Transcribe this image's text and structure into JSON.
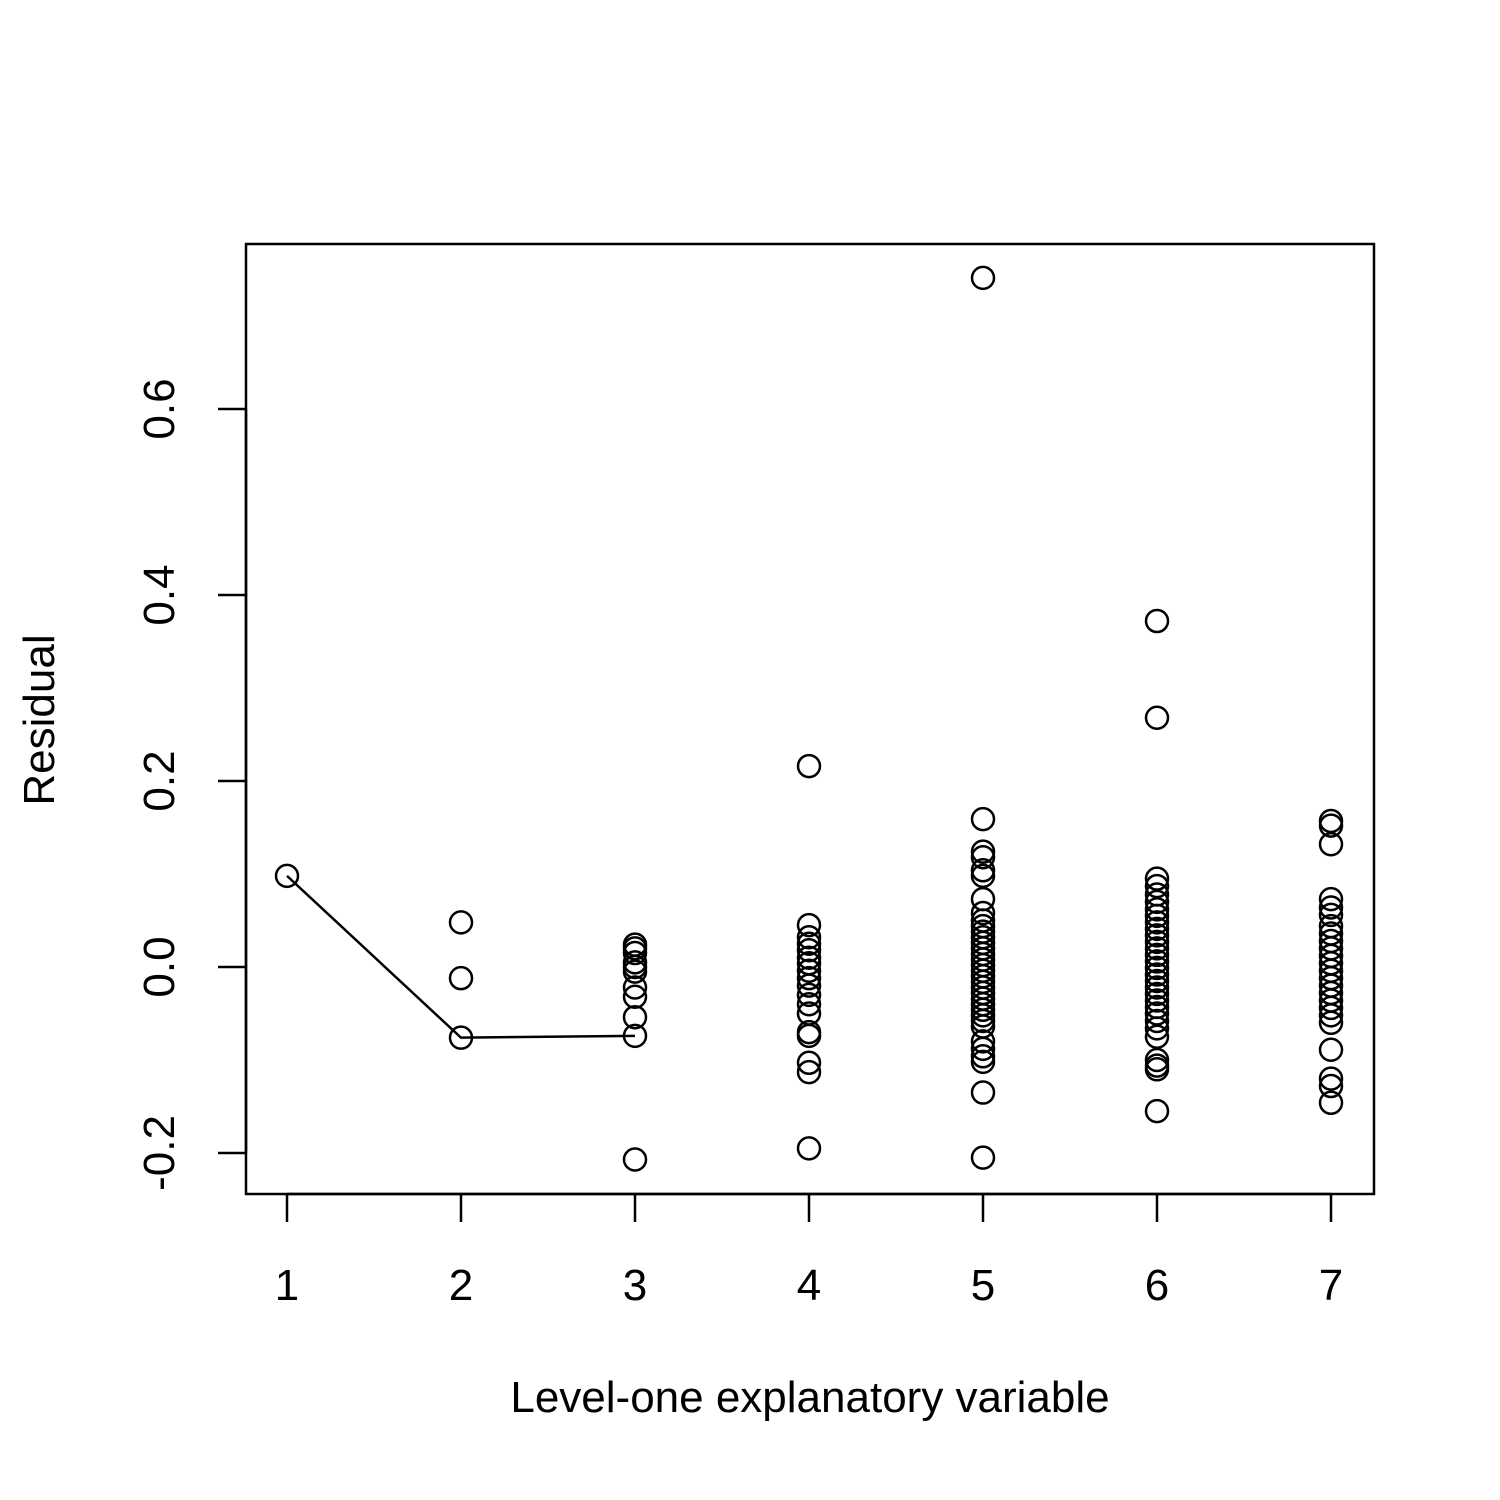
{
  "chart_data": {
    "type": "scatter",
    "xlabel": "Level-one explanatory variable",
    "ylabel": "Residual",
    "xlim": [
      1,
      7
    ],
    "ylim": [
      -0.21,
      0.76
    ],
    "xticks": [
      "1",
      "2",
      "3",
      "4",
      "5",
      "6",
      "7"
    ],
    "yticks": [
      "-0.2",
      "0.0",
      "0.2",
      "0.4",
      "0.6"
    ],
    "ytick_values": [
      -0.2,
      0.0,
      0.2,
      0.4,
      0.6
    ],
    "grid": false,
    "legend": "none",
    "points": [
      {
        "x": 1,
        "y": 0.098
      },
      {
        "x": 2,
        "y": 0.048
      },
      {
        "x": 2,
        "y": -0.012
      },
      {
        "x": 2,
        "y": -0.076
      },
      {
        "x": 3,
        "y": 0.024
      },
      {
        "x": 3,
        "y": 0.02
      },
      {
        "x": 3,
        "y": 0.015
      },
      {
        "x": 3,
        "y": 0.005
      },
      {
        "x": 3,
        "y": 0.0
      },
      {
        "x": 3,
        "y": -0.005
      },
      {
        "x": 3,
        "y": -0.022
      },
      {
        "x": 3,
        "y": -0.032
      },
      {
        "x": 3,
        "y": -0.054
      },
      {
        "x": 3,
        "y": -0.074
      },
      {
        "x": 3,
        "y": -0.207
      },
      {
        "x": 4,
        "y": 0.216
      },
      {
        "x": 4,
        "y": 0.045
      },
      {
        "x": 4,
        "y": 0.032
      },
      {
        "x": 4,
        "y": 0.025
      },
      {
        "x": 4,
        "y": 0.018
      },
      {
        "x": 4,
        "y": 0.01
      },
      {
        "x": 4,
        "y": 0.004
      },
      {
        "x": 4,
        "y": -0.004
      },
      {
        "x": 4,
        "y": -0.012
      },
      {
        "x": 4,
        "y": -0.02
      },
      {
        "x": 4,
        "y": -0.03
      },
      {
        "x": 4,
        "y": -0.04
      },
      {
        "x": 4,
        "y": -0.05
      },
      {
        "x": 4,
        "y": -0.07
      },
      {
        "x": 4,
        "y": -0.074
      },
      {
        "x": 4,
        "y": -0.103
      },
      {
        "x": 4,
        "y": -0.113
      },
      {
        "x": 4,
        "y": -0.195
      },
      {
        "x": 5,
        "y": 0.741
      },
      {
        "x": 5,
        "y": 0.159
      },
      {
        "x": 5,
        "y": 0.124
      },
      {
        "x": 5,
        "y": 0.118
      },
      {
        "x": 5,
        "y": 0.104
      },
      {
        "x": 5,
        "y": 0.098
      },
      {
        "x": 5,
        "y": 0.073
      },
      {
        "x": 5,
        "y": 0.058
      },
      {
        "x": 5,
        "y": 0.05
      },
      {
        "x": 5,
        "y": 0.044
      },
      {
        "x": 5,
        "y": 0.038
      },
      {
        "x": 5,
        "y": 0.032
      },
      {
        "x": 5,
        "y": 0.026
      },
      {
        "x": 5,
        "y": 0.02
      },
      {
        "x": 5,
        "y": 0.014
      },
      {
        "x": 5,
        "y": 0.008
      },
      {
        "x": 5,
        "y": 0.002
      },
      {
        "x": 5,
        "y": -0.004
      },
      {
        "x": 5,
        "y": -0.01
      },
      {
        "x": 5,
        "y": -0.016
      },
      {
        "x": 5,
        "y": -0.022
      },
      {
        "x": 5,
        "y": -0.028
      },
      {
        "x": 5,
        "y": -0.034
      },
      {
        "x": 5,
        "y": -0.04
      },
      {
        "x": 5,
        "y": -0.046
      },
      {
        "x": 5,
        "y": -0.052
      },
      {
        "x": 5,
        "y": -0.058
      },
      {
        "x": 5,
        "y": -0.064
      },
      {
        "x": 5,
        "y": -0.08
      },
      {
        "x": 5,
        "y": -0.088
      },
      {
        "x": 5,
        "y": -0.096
      },
      {
        "x": 5,
        "y": -0.102
      },
      {
        "x": 5,
        "y": -0.135
      },
      {
        "x": 5,
        "y": -0.205
      },
      {
        "x": 6,
        "y": 0.372
      },
      {
        "x": 6,
        "y": 0.268
      },
      {
        "x": 6,
        "y": 0.095
      },
      {
        "x": 6,
        "y": 0.087
      },
      {
        "x": 6,
        "y": 0.078
      },
      {
        "x": 6,
        "y": 0.07
      },
      {
        "x": 6,
        "y": 0.062
      },
      {
        "x": 6,
        "y": 0.055
      },
      {
        "x": 6,
        "y": 0.048
      },
      {
        "x": 6,
        "y": 0.041
      },
      {
        "x": 6,
        "y": 0.034
      },
      {
        "x": 6,
        "y": 0.027
      },
      {
        "x": 6,
        "y": 0.02
      },
      {
        "x": 6,
        "y": 0.013
      },
      {
        "x": 6,
        "y": 0.006
      },
      {
        "x": 6,
        "y": -0.001
      },
      {
        "x": 6,
        "y": -0.008
      },
      {
        "x": 6,
        "y": -0.015
      },
      {
        "x": 6,
        "y": -0.022
      },
      {
        "x": 6,
        "y": -0.029
      },
      {
        "x": 6,
        "y": -0.036
      },
      {
        "x": 6,
        "y": -0.043
      },
      {
        "x": 6,
        "y": -0.05
      },
      {
        "x": 6,
        "y": -0.058
      },
      {
        "x": 6,
        "y": -0.066
      },
      {
        "x": 6,
        "y": -0.075
      },
      {
        "x": 6,
        "y": -0.1
      },
      {
        "x": 6,
        "y": -0.106
      },
      {
        "x": 6,
        "y": -0.11
      },
      {
        "x": 6,
        "y": -0.155
      },
      {
        "x": 7,
        "y": 0.157
      },
      {
        "x": 7,
        "y": 0.152
      },
      {
        "x": 7,
        "y": 0.132
      },
      {
        "x": 7,
        "y": 0.073
      },
      {
        "x": 7,
        "y": 0.064
      },
      {
        "x": 7,
        "y": 0.056
      },
      {
        "x": 7,
        "y": 0.044
      },
      {
        "x": 7,
        "y": 0.036
      },
      {
        "x": 7,
        "y": 0.028
      },
      {
        "x": 7,
        "y": 0.02
      },
      {
        "x": 7,
        "y": 0.012
      },
      {
        "x": 7,
        "y": 0.004
      },
      {
        "x": 7,
        "y": -0.004
      },
      {
        "x": 7,
        "y": -0.012
      },
      {
        "x": 7,
        "y": -0.02
      },
      {
        "x": 7,
        "y": -0.028
      },
      {
        "x": 7,
        "y": -0.036
      },
      {
        "x": 7,
        "y": -0.044
      },
      {
        "x": 7,
        "y": -0.052
      },
      {
        "x": 7,
        "y": -0.06
      },
      {
        "x": 7,
        "y": -0.089
      },
      {
        "x": 7,
        "y": -0.12
      },
      {
        "x": 7,
        "y": -0.128
      },
      {
        "x": 7,
        "y": -0.146
      }
    ],
    "line": [
      {
        "x": 1,
        "y": 0.098
      },
      {
        "x": 2,
        "y": -0.076
      },
      {
        "x": 3,
        "y": -0.074
      }
    ]
  }
}
